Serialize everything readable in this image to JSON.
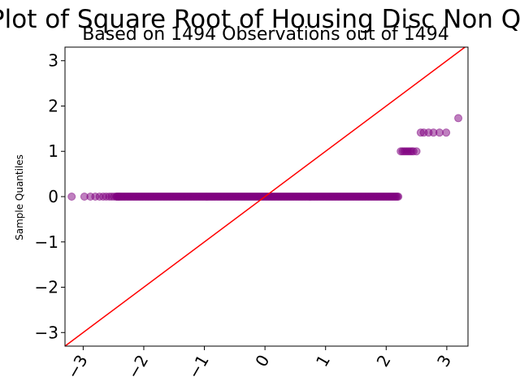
{
  "chart_data": {
    "type": "scatter",
    "title": "QQ Plot of Square Root of Housing Disc Non Queer",
    "subtitle": "Based on 1494 Observations out of 1494",
    "xlabel": "",
    "ylabel": "Sample Quantiles",
    "xlim": [
      -3.3,
      3.35
    ],
    "ylim": [
      -3.3,
      3.3
    ],
    "xticks": [
      -3,
      -2,
      -1,
      0,
      1,
      2,
      3
    ],
    "xtick_labels": [
      "−3",
      "−2",
      "−1",
      "0",
      "1",
      "2",
      "3"
    ],
    "yticks": [
      -3,
      -2,
      -1,
      0,
      1,
      2,
      3
    ],
    "ytick_labels": [
      "−3",
      "−2",
      "−1",
      "0",
      "1",
      "2",
      "3"
    ],
    "grid": false,
    "point_color": "#800080",
    "line_color": "#ff0000",
    "reference_line": {
      "slope": 1,
      "intercept": 0
    },
    "series": [
      {
        "points": [
          [
            -3.19,
            0
          ],
          [
            -2.98,
            0
          ],
          [
            -2.88,
            0
          ],
          [
            -2.8,
            0
          ],
          [
            -2.73,
            0
          ],
          [
            -2.67,
            0
          ],
          [
            -2.62,
            0
          ],
          [
            -2.57,
            0
          ],
          [
            -2.53,
            0
          ],
          [
            -2.49,
            0
          ],
          [
            -2.45,
            0
          ],
          [
            -2.41,
            0
          ],
          [
            2.24,
            1
          ],
          [
            2.27,
            1
          ],
          [
            2.3,
            1
          ],
          [
            2.33,
            1
          ],
          [
            2.36,
            1
          ],
          [
            2.39,
            1
          ],
          [
            2.42,
            1
          ],
          [
            2.45,
            1
          ],
          [
            2.5,
            1
          ],
          [
            2.57,
            1.414
          ],
          [
            2.62,
            1.414
          ],
          [
            2.7,
            1.414
          ],
          [
            2.78,
            1.414
          ],
          [
            2.88,
            1.414
          ],
          [
            2.99,
            1.414
          ],
          [
            3.19,
            1.732
          ]
        ],
        "dense_segment": {
          "x_from": -2.45,
          "x_to": 2.2,
          "y": 0
        }
      }
    ]
  }
}
